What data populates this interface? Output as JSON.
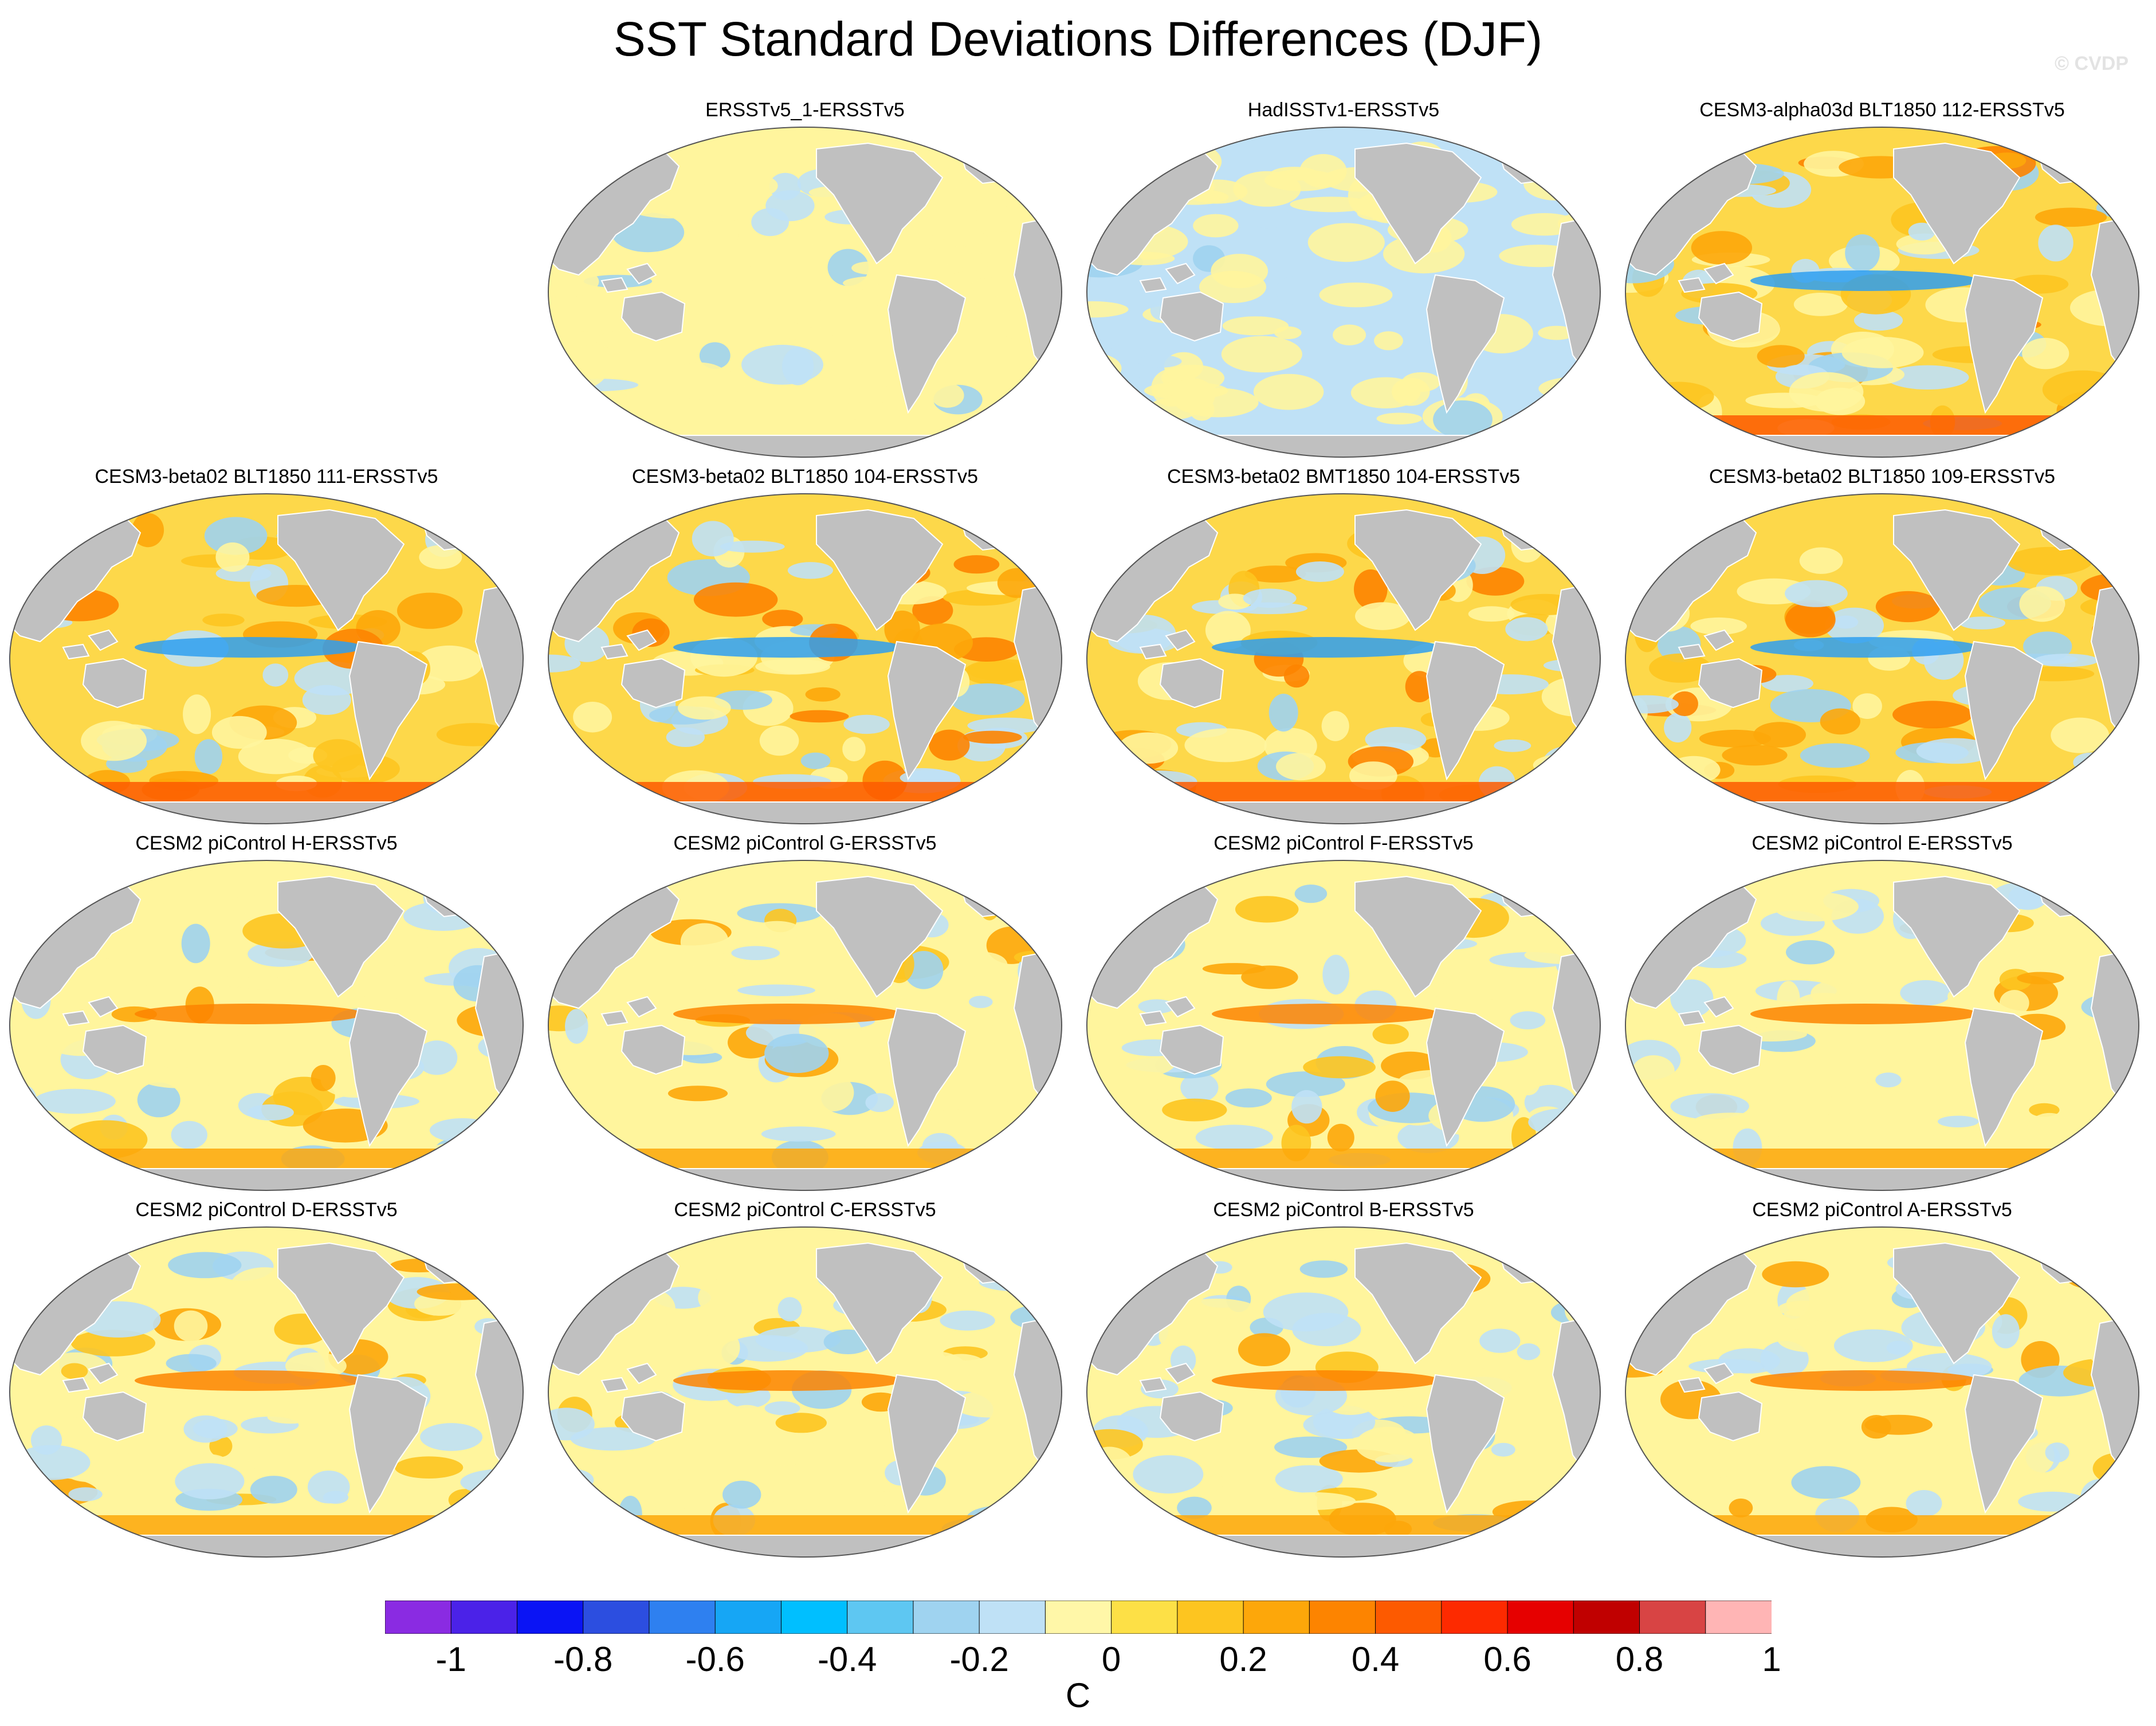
{
  "title": "SST Standard Deviations Differences (DJF)",
  "watermark": "© CVDP",
  "panels": [
    {
      "title": "ERSSTv5_1-ERSSTv5",
      "ocean": "#fff59d",
      "mix": 0.2,
      "warm": 0.0
    },
    {
      "title": "HadISSTv1-ERSSTv5",
      "ocean": "#bfe1f6",
      "mix": 0.2,
      "warm": 0.0
    },
    {
      "title": "CESM3-alpha03d BLT1850 112-ERSSTv5",
      "ocean": "#fdd84a",
      "mix": 0.3,
      "warm": 0.9
    },
    {
      "title": "CESM3-beta02 BLT1850 111-ERSSTv5",
      "ocean": "#fdd84a",
      "mix": 0.3,
      "warm": 1.0
    },
    {
      "title": "CESM3-beta02 BLT1850 104-ERSSTv5",
      "ocean": "#fdd84a",
      "mix": 0.3,
      "warm": 1.0
    },
    {
      "title": "CESM3-beta02 BMT1850 104-ERSSTv5",
      "ocean": "#fdd84a",
      "mix": 0.3,
      "warm": 1.0
    },
    {
      "title": "CESM3-beta02 BLT1850 109-ERSSTv5",
      "ocean": "#fdd84a",
      "mix": 0.3,
      "warm": 1.0
    },
    {
      "title": "CESM2 piControl H-ERSSTv5",
      "ocean": "#fff59d",
      "mix": 0.4,
      "warm": 0.6
    },
    {
      "title": "CESM2 piControl G-ERSSTv5",
      "ocean": "#fff59d",
      "mix": 0.4,
      "warm": 0.6
    },
    {
      "title": "CESM2 piControl F-ERSSTv5",
      "ocean": "#fff59d",
      "mix": 0.4,
      "warm": 0.6
    },
    {
      "title": "CESM2 piControl E-ERSSTv5",
      "ocean": "#fff59d",
      "mix": 0.4,
      "warm": 0.6
    },
    {
      "title": "CESM2 piControl D-ERSSTv5",
      "ocean": "#fff59d",
      "mix": 0.45,
      "warm": 0.6
    },
    {
      "title": "CESM2 piControl C-ERSSTv5",
      "ocean": "#fff59d",
      "mix": 0.45,
      "warm": 0.5
    },
    {
      "title": "CESM2 piControl B-ERSSTv5",
      "ocean": "#fff59d",
      "mix": 0.5,
      "warm": 0.4
    },
    {
      "title": "CESM2 piControl A-ERSSTv5",
      "ocean": "#fff59d",
      "mix": 0.45,
      "warm": 0.5
    }
  ],
  "colorbar": {
    "colors": [
      "#8a2be2",
      "#4b22e8",
      "#0a14f5",
      "#2c4ee0",
      "#2e80f0",
      "#16a6f5",
      "#00bfff",
      "#5ec7f2",
      "#9fd3f0",
      "#bfe1f6",
      "#fff7a8",
      "#fde046",
      "#fdc520",
      "#fda70a",
      "#fd8400",
      "#fd5a00",
      "#fd2a00",
      "#e60000",
      "#c00000",
      "#d84444",
      "#ffb5b5"
    ],
    "labels": [
      "-1",
      "-0.8",
      "-0.6",
      "-0.4",
      "-0.2",
      "0",
      "0.2",
      "0.4",
      "0.6",
      "0.8",
      "1"
    ],
    "units": "C"
  },
  "land_color": "#c0c0c0"
}
